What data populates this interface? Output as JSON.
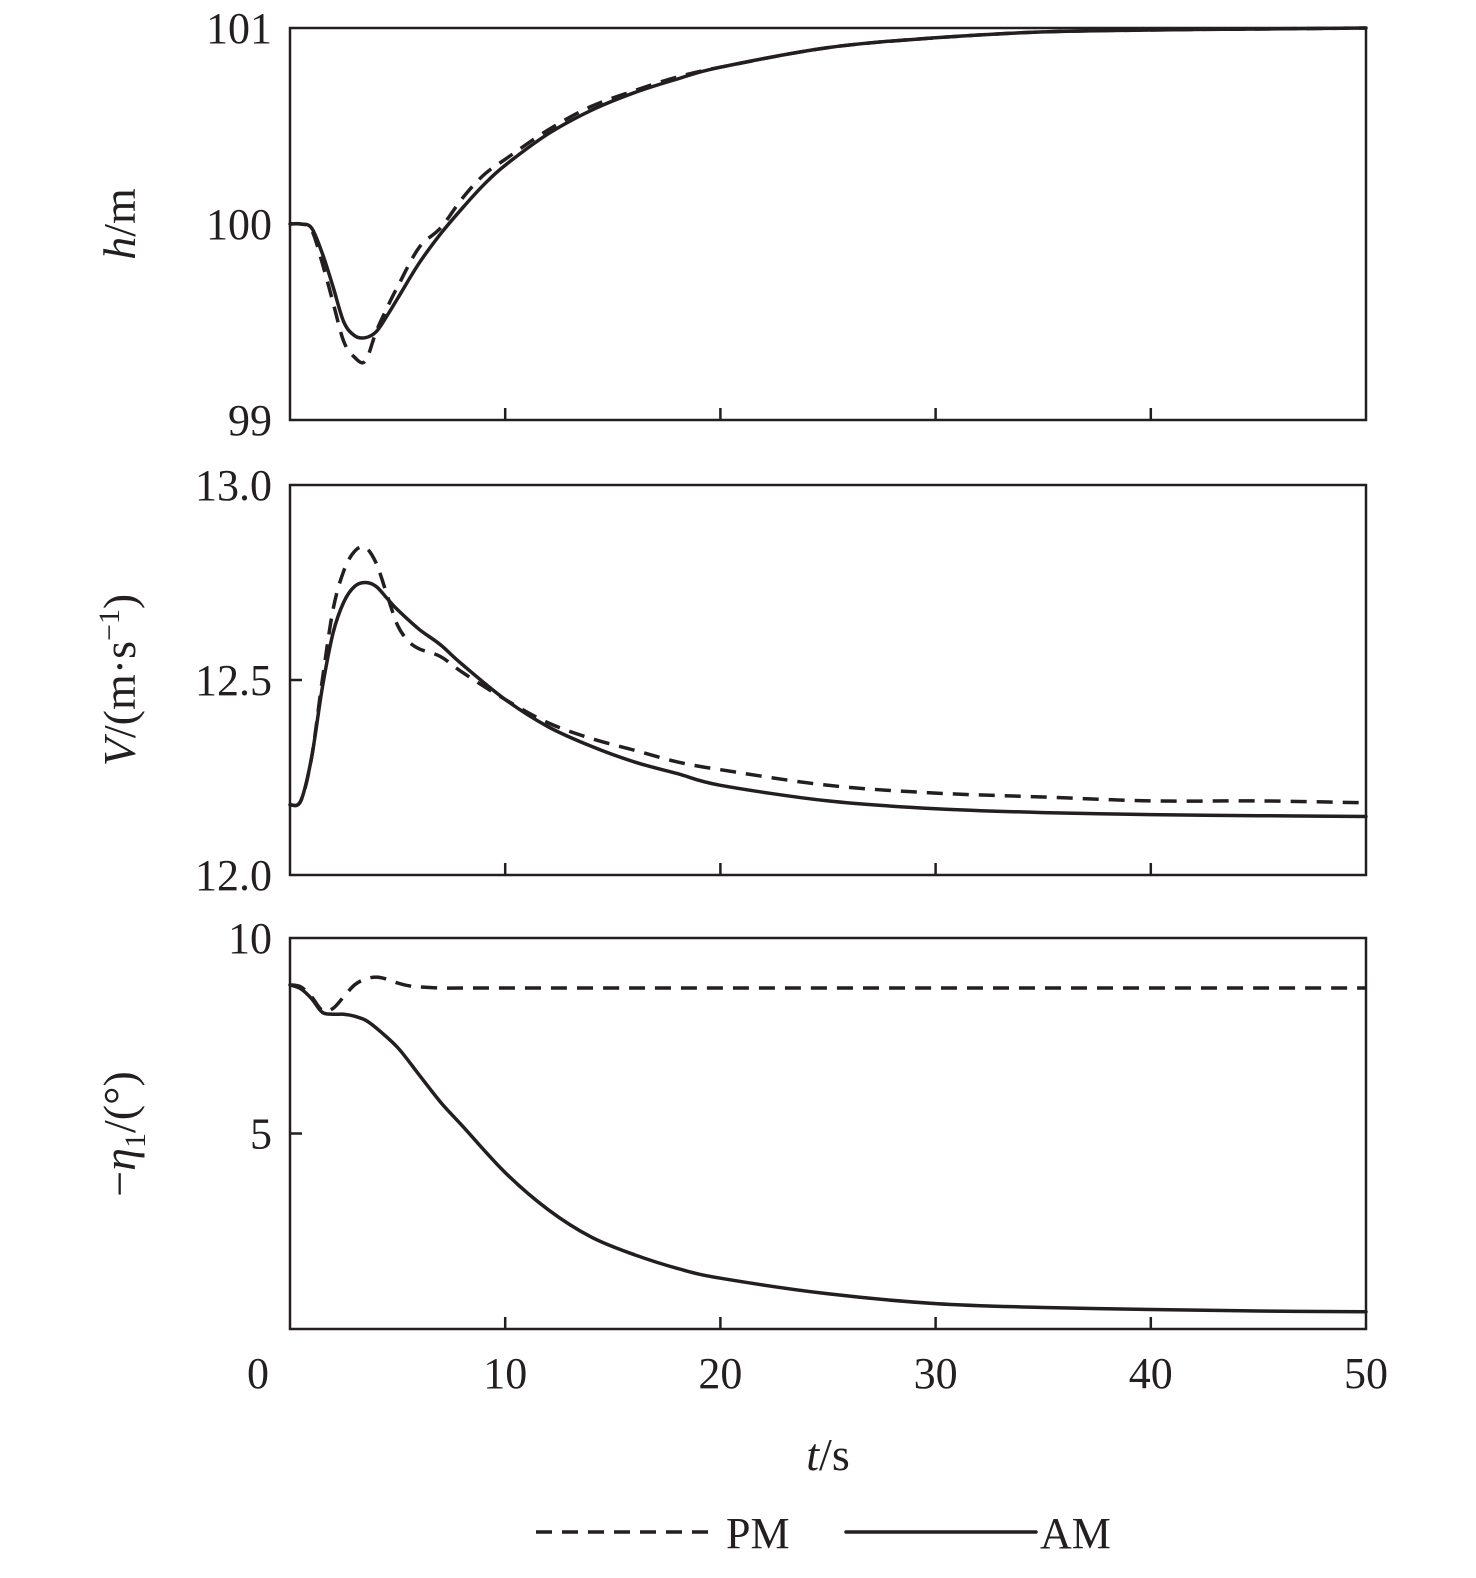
{
  "chart_data": [
    {
      "type": "line",
      "panel": "top",
      "ylabel": "h/m",
      "ylabel_italic": "h",
      "ylabel_rest": "/m",
      "ylim": [
        99,
        101
      ],
      "yticks": [
        99,
        100,
        101
      ],
      "ytick_labels": [
        "99",
        "100",
        "101"
      ],
      "xlim": [
        0,
        50
      ],
      "xticks": [
        0,
        10,
        20,
        30,
        40,
        50
      ],
      "grid": false,
      "series": [
        {
          "name": "PM",
          "style": "dashed",
          "x": [
            0,
            0.5,
            1,
            1.5,
            2,
            2.5,
            3,
            3.5,
            4,
            4.5,
            5,
            6,
            7,
            8,
            9,
            10,
            12,
            14,
            16,
            18,
            20,
            25,
            30,
            35,
            40,
            45,
            50
          ],
          "y": [
            100,
            100,
            99.97,
            99.8,
            99.6,
            99.4,
            99.32,
            99.3,
            99.45,
            99.57,
            99.68,
            99.88,
            99.98,
            100.13,
            100.25,
            100.33,
            100.48,
            100.6,
            100.68,
            100.75,
            100.8,
            100.9,
            100.95,
            100.98,
            100.99,
            100.995,
            101
          ]
        },
        {
          "name": "AM",
          "style": "solid",
          "x": [
            0,
            0.5,
            1,
            1.5,
            2,
            2.5,
            3,
            3.5,
            4,
            4.5,
            5,
            6,
            7,
            8,
            9,
            10,
            12,
            14,
            16,
            18,
            20,
            25,
            30,
            35,
            40,
            45,
            50
          ],
          "y": [
            100,
            100,
            99.98,
            99.85,
            99.68,
            99.5,
            99.43,
            99.42,
            99.45,
            99.53,
            99.62,
            99.8,
            99.95,
            100.08,
            100.2,
            100.3,
            100.46,
            100.58,
            100.67,
            100.74,
            100.8,
            100.9,
            100.95,
            100.98,
            100.99,
            100.995,
            101
          ]
        }
      ]
    },
    {
      "type": "line",
      "panel": "middle",
      "ylabel": "V/(m·s⁻¹)",
      "ylabel_italic": "V",
      "ylabel_rest": "/(m·s",
      "ylabel_sup": "−1",
      "ylabel_end": ")",
      "ylim": [
        12.0,
        13.0
      ],
      "yticks": [
        12.0,
        12.5,
        13.0
      ],
      "ytick_labels": [
        "12.0",
        "12.5",
        "13.0"
      ],
      "xlim": [
        0,
        50
      ],
      "xticks": [
        0,
        10,
        20,
        30,
        40,
        50
      ],
      "grid": false,
      "series": [
        {
          "name": "PM",
          "style": "dashed",
          "x": [
            0,
            0.5,
            1,
            1.5,
            2,
            2.5,
            3,
            3.5,
            4,
            4.5,
            5,
            5.5,
            6,
            7,
            8,
            10,
            12,
            14,
            16,
            18,
            20,
            25,
            30,
            35,
            40,
            45,
            50
          ],
          "y": [
            12.18,
            12.19,
            12.3,
            12.5,
            12.68,
            12.78,
            12.83,
            12.84,
            12.8,
            12.72,
            12.64,
            12.6,
            12.58,
            12.56,
            12.52,
            12.45,
            12.39,
            12.35,
            12.32,
            12.29,
            12.27,
            12.23,
            12.21,
            12.2,
            12.19,
            12.19,
            12.185
          ]
        },
        {
          "name": "AM",
          "style": "solid",
          "x": [
            0,
            0.5,
            1,
            1.5,
            2,
            2.5,
            3,
            3.5,
            4,
            4.5,
            5,
            6,
            7,
            8,
            10,
            12,
            14,
            16,
            18,
            20,
            25,
            30,
            35,
            40,
            45,
            50
          ],
          "y": [
            12.18,
            12.19,
            12.3,
            12.48,
            12.62,
            12.7,
            12.74,
            12.75,
            12.74,
            12.71,
            12.68,
            12.63,
            12.59,
            12.54,
            12.45,
            12.38,
            12.33,
            12.29,
            12.26,
            12.23,
            12.19,
            12.17,
            12.16,
            12.155,
            12.152,
            12.15
          ]
        }
      ]
    },
    {
      "type": "line",
      "panel": "bottom",
      "ylabel": "−η1/(°)",
      "ylabel_pre": "−",
      "ylabel_italic": "η",
      "ylabel_sub": "1",
      "ylabel_rest": "/(°)",
      "ylim": [
        0,
        10
      ],
      "yticks": [
        5,
        10
      ],
      "ytick_labels": [
        "5",
        "10"
      ],
      "xlim": [
        0,
        50
      ],
      "xticks": [
        0,
        10,
        20,
        30,
        40,
        50
      ],
      "xtick_labels": [
        "0",
        "10",
        "20",
        "30",
        "40",
        "50"
      ],
      "xlabel": "t/s",
      "xlabel_italic": "t",
      "xlabel_rest": "/s",
      "grid": false,
      "series": [
        {
          "name": "PM",
          "style": "dashed",
          "x": [
            0,
            0.5,
            1,
            1.5,
            2,
            2.5,
            3,
            3.5,
            4,
            4.5,
            5,
            5.5,
            6,
            7,
            8,
            10,
            15,
            20,
            30,
            40,
            50
          ],
          "y": [
            8.8,
            8.75,
            8.5,
            8.15,
            8.2,
            8.5,
            8.8,
            8.95,
            9.0,
            8.95,
            8.85,
            8.78,
            8.75,
            8.72,
            8.72,
            8.72,
            8.72,
            8.72,
            8.72,
            8.72,
            8.72
          ]
        },
        {
          "name": "AM",
          "style": "solid",
          "x": [
            0,
            0.5,
            1,
            1.5,
            2,
            2.5,
            3,
            3.5,
            4,
            5,
            6,
            7,
            8,
            10,
            12,
            14,
            16,
            18,
            20,
            25,
            30,
            35,
            40,
            45,
            50
          ],
          "y": [
            8.8,
            8.7,
            8.45,
            8.1,
            8.05,
            8.05,
            8.0,
            7.9,
            7.7,
            7.2,
            6.5,
            5.8,
            5.2,
            4.0,
            3.05,
            2.35,
            1.9,
            1.55,
            1.3,
            0.9,
            0.65,
            0.55,
            0.5,
            0.46,
            0.44
          ]
        }
      ]
    }
  ],
  "legend": {
    "placement": "bottom-center",
    "items": [
      {
        "label": "PM",
        "style": "dashed"
      },
      {
        "label": "AM",
        "style": "solid"
      }
    ]
  }
}
